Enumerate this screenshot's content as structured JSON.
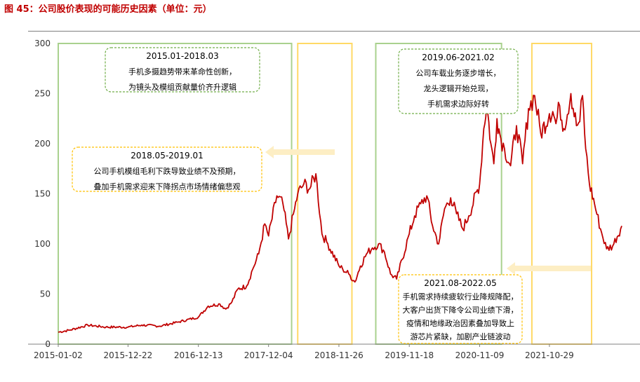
{
  "figure_title": "图 45：公司股价表现的可能历史因素（单位：元）",
  "colors": {
    "line": "#c00000",
    "green": "#a9d18e",
    "yellow": "#ffd966",
    "arrow": "#fdeec4",
    "dash_green": "#70ad47",
    "dash_yellow": "#ffc000"
  },
  "chart_data": {
    "type": "line",
    "title": "图 45：公司股价表现的可能历史因素（单位：元）",
    "xlabel": "",
    "ylabel": "",
    "ylim": [
      0,
      300
    ],
    "yticks": [
      0,
      50,
      100,
      150,
      200,
      250,
      300
    ],
    "xticks": [
      "2015-01-02",
      "2015-12-22",
      "2016-12-13",
      "2017-12-04",
      "2018-11-26",
      "2019-11-18",
      "2020-11-09",
      "2021-10-29"
    ],
    "x_range": [
      "2015-01-02",
      "2022-10-31"
    ],
    "grid": false,
    "series": [
      {
        "name": "",
        "x": [
          "2015-01-02",
          "2015-03-01",
          "2015-06-01",
          "2015-09-01",
          "2015-12-22",
          "2016-03-01",
          "2016-06-01",
          "2016-09-01",
          "2016-12-13",
          "2017-02-01",
          "2017-04-01",
          "2017-05-01",
          "2017-06-01",
          "2017-07-01",
          "2017-08-15",
          "2017-09-15",
          "2017-10-15",
          "2017-11-15",
          "2017-12-04",
          "2018-01-15",
          "2018-02-15",
          "2018-03-15",
          "2018-04-15",
          "2018-05-01",
          "2018-06-01",
          "2018-07-01",
          "2018-08-01",
          "2018-09-01",
          "2018-10-01",
          "2018-11-26",
          "2018-12-15",
          "2019-01-15",
          "2019-02-15",
          "2019-03-15",
          "2019-04-15",
          "2019-05-15",
          "2019-06-15",
          "2019-07-15",
          "2019-08-15",
          "2019-09-15",
          "2019-11-18",
          "2019-12-15",
          "2020-01-15",
          "2020-02-15",
          "2020-03-15",
          "2020-04-15",
          "2020-05-15",
          "2020-06-15",
          "2020-07-15",
          "2020-08-15",
          "2020-09-15",
          "2020-11-09",
          "2020-11-30",
          "2020-12-15",
          "2021-01-05",
          "2021-01-20",
          "2021-02-05",
          "2021-02-25",
          "2021-03-15",
          "2021-04-15",
          "2021-05-15",
          "2021-06-15",
          "2021-07-15",
          "2021-08-15",
          "2021-09-15",
          "2021-10-29",
          "2021-11-15",
          "2021-12-01",
          "2021-12-20",
          "2022-01-10",
          "2022-02-15",
          "2022-03-15",
          "2022-04-01",
          "2022-04-15",
          "2022-05-01",
          "2022-05-20",
          "2022-06-15",
          "2022-07-15",
          "2022-08-15",
          "2022-09-15",
          "2022-10-31"
        ],
        "values": [
          12,
          14,
          19,
          17,
          17,
          19,
          18,
          22,
          27,
          38,
          40,
          35,
          42,
          55,
          58,
          75,
          90,
          120,
          108,
          148,
          140,
          105,
          135,
          150,
          160,
          155,
          170,
          110,
          100,
          78,
          75,
          70,
          62,
          78,
          90,
          96,
          100,
          92,
          70,
          65,
          110,
          128,
          140,
          148,
          118,
          100,
          135,
          146,
          130,
          115,
          128,
          160,
          215,
          240,
          200,
          180,
          225,
          205,
          195,
          178,
          218,
          180,
          235,
          248,
          210,
          230,
          232,
          220,
          238,
          215,
          250,
          218,
          222,
          248,
          195,
          160,
          140,
          115,
          95,
          98,
          118
        ]
      }
    ],
    "annotations": [
      {
        "kind": "box-green",
        "x_start": "2015-01-02",
        "x_end": "2018-03-31",
        "lines": [
          "2015.01-2018.03",
          "手机多摄趋势带来革命性创新，",
          "为镜头及模组贡献量价齐升逻辑"
        ]
      },
      {
        "kind": "box-yellow",
        "x_start": "2018-05-01",
        "x_end": "2019-01-31",
        "lines": [
          "2018.05-2019.01",
          "公司手机模组毛利下跌导致业绩不及预期，",
          "叠加手机需求迎来下降拐点市场情绪偏悲观"
        ]
      },
      {
        "kind": "box-green",
        "x_start": "2019-06-01",
        "x_end": "2021-02-28",
        "lines": [
          "2019.06-2021.02",
          "公司车载业务逐步增长，",
          "龙头逻辑开始兑现，",
          "手机需求边际好转"
        ]
      },
      {
        "kind": "box-yellow",
        "x_start": "2021-08-01",
        "x_end": "2022-05-31",
        "lines": [
          "2021.08-2022.05",
          "手机需求持续疲软行业降规降配，",
          "大客户出货下降令公司业绩下滑，",
          "疫情和地缘政治因素叠加导致上",
          "游芯片紧缺，加剧产业链波动"
        ]
      }
    ]
  }
}
